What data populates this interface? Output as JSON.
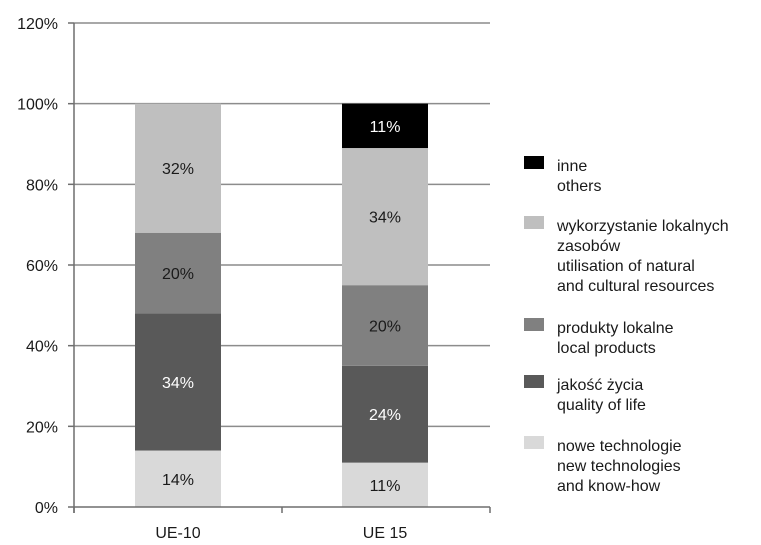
{
  "chart_data": {
    "type": "bar",
    "stacked": true,
    "categories": [
      "UE-10",
      "UE 15"
    ],
    "series": [
      {
        "name": "nowe technologie\nnew technologies\nand know-how",
        "values": [
          14,
          11
        ],
        "color": "#d9d9d9",
        "label_color": "#1a1a1a"
      },
      {
        "name": "jakość życia\nquality of life",
        "values": [
          34,
          24
        ],
        "color": "#595959",
        "label_color": "#ffffff"
      },
      {
        "name": "produkty lokalne\nlocal products",
        "values": [
          20,
          20
        ],
        "color": "#808080",
        "label_color": "#1a1a1a"
      },
      {
        "name": "wykorzystanie lokalnych\nzasobów\nutilisation of natural\nand cultural resources",
        "values": [
          32,
          34
        ],
        "color": "#bfbfbf",
        "label_color": "#1a1a1a"
      },
      {
        "name": "inne\nothers",
        "values": [
          0,
          11
        ],
        "color": "#000000",
        "label_color": "#ffffff"
      }
    ],
    "data_labels": [
      [
        "14%",
        "11%"
      ],
      [
        "34%",
        "24%"
      ],
      [
        "20%",
        "20%"
      ],
      [
        "32%",
        "34%"
      ],
      [
        "",
        "11%"
      ]
    ],
    "ylim": [
      0,
      120
    ],
    "yticks": [
      0,
      20,
      40,
      60,
      80,
      100,
      120
    ],
    "ytick_labels": [
      "0%",
      "20%",
      "40%",
      "60%",
      "80%",
      "100%",
      "120%"
    ],
    "grid": true,
    "legend_position": "right",
    "legend_order": [
      4,
      3,
      2,
      1,
      0
    ],
    "title": "",
    "xlabel": "",
    "ylabel": ""
  }
}
